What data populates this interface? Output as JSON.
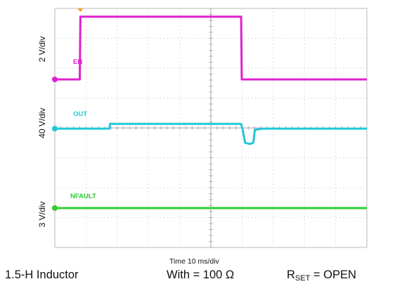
{
  "chart_data": {
    "type": "line",
    "x_unit": "ms",
    "x_range": [
      0,
      100
    ],
    "x_divisions": 10,
    "xlabel": "Time 10 ms/div",
    "channels": [
      {
        "name": "EN",
        "scale": "2 V/div",
        "color": "#e020d0",
        "x": [
          0,
          8,
          8.2,
          59.7,
          59.9,
          100
        ],
        "values": [
          0,
          0,
          6.2,
          6.2,
          0,
          0
        ]
      },
      {
        "name": "OUT",
        "scale": "40 V/div",
        "color": "#20c8d8",
        "x": [
          0,
          17.5,
          17.7,
          59.7,
          60.2,
          61.0,
          62.5,
          63.6,
          64.1,
          66.5,
          100
        ],
        "values": [
          0,
          0,
          16,
          16,
          -4,
          -48,
          -52,
          -48,
          -4,
          0,
          0
        ]
      },
      {
        "name": "NFAULT",
        "scale": "3 V/div",
        "color": "#30cc30",
        "x": [
          0,
          100
        ],
        "values": [
          0,
          0
        ]
      }
    ]
  },
  "footer": {
    "inductor": "1.5-H Inductor",
    "resistor": "With = 100 Ω",
    "rset_label": "R",
    "rset_sub": "SET",
    "rset_value": " = OPEN"
  }
}
